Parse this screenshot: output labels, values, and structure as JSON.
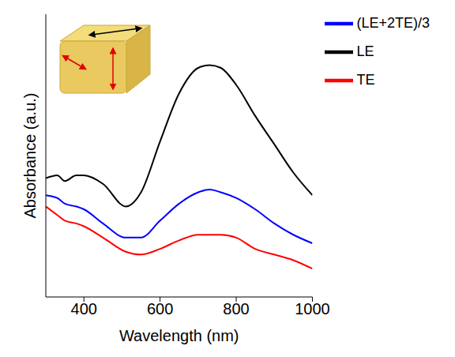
{
  "chart_data": {
    "type": "line",
    "x_label": "Wavelength (nm)",
    "y_label": "Absorbance (a.u.)",
    "x": [
      300,
      330,
      350,
      380,
      400,
      450,
      510,
      550,
      600,
      650,
      700,
      730,
      760,
      800,
      850,
      900,
      950,
      1000
    ],
    "series": [
      {
        "name": "LE",
        "color": "#000000",
        "values": [
          0.42,
          0.43,
          0.41,
          0.43,
          0.43,
          0.4,
          0.32,
          0.37,
          0.55,
          0.72,
          0.81,
          0.82,
          0.81,
          0.75,
          0.64,
          0.54,
          0.44,
          0.36
        ]
      },
      {
        "name": "(LE+2TE)/3",
        "color": "#0000ff",
        "values": [
          0.36,
          0.35,
          0.33,
          0.32,
          0.31,
          0.26,
          0.21,
          0.21,
          0.27,
          0.33,
          0.37,
          0.38,
          0.37,
          0.35,
          0.31,
          0.26,
          0.22,
          0.19
        ]
      },
      {
        "name": "TE",
        "color": "#ff0000",
        "values": [
          0.32,
          0.29,
          0.27,
          0.26,
          0.25,
          0.21,
          0.16,
          0.15,
          0.17,
          0.2,
          0.22,
          0.22,
          0.22,
          0.21,
          0.17,
          0.15,
          0.13,
          0.1
        ]
      }
    ],
    "xlim": [
      300,
      1000
    ],
    "xticks": [
      400,
      600,
      800,
      1000
    ],
    "ylim": [
      0,
      1
    ],
    "tick_labels": "x",
    "legend": "upper right"
  }
}
